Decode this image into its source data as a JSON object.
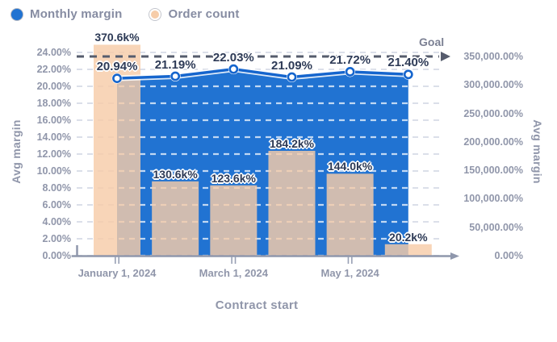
{
  "chart_data": {
    "type": "combo",
    "title": "",
    "series": [
      {
        "name": "Monthly margin",
        "type": "area-line",
        "axis": "left",
        "area_color": "#2173d2",
        "line_color": "#1565cd",
        "values": [
          20.94,
          21.19,
          22.03,
          21.09,
          21.72,
          21.4
        ],
        "labels": [
          "20.94%",
          "21.19%",
          "22.03%",
          "21.09%",
          "21.72%",
          "21.40%"
        ]
      },
      {
        "name": "Order count",
        "type": "bar",
        "axis": "right",
        "color": "#f6cca8",
        "values": [
          370600,
          130600,
          123600,
          184200,
          144000,
          20200
        ],
        "labels": [
          "370.6k%",
          "130.6k%",
          "123.6k%",
          "184.2k%",
          "144.0k%",
          "20.2k%"
        ]
      }
    ],
    "left_axis": {
      "title": "Avg margin",
      "min": 0,
      "max": 24,
      "tick_labels": [
        "24.00%",
        "22.00%",
        "20.00%",
        "18.00%",
        "16.00%",
        "14.00%",
        "12.00%",
        "10.00%",
        "8.00%",
        "6.00%",
        "4.00%",
        "2.00%",
        "0.00%"
      ]
    },
    "right_axis": {
      "title": "Avg margin",
      "min": 0,
      "max": 350000,
      "tick_labels": [
        "350,000.00%",
        "300,000.00%",
        "250,000.00%",
        "200,000.00%",
        "150,000.00%",
        "100,000.00%",
        "50,000.00%",
        "0.00%"
      ]
    },
    "x_axis": {
      "title": "Contract start",
      "tick_labels": [
        "January 1, 2024",
        "March 1, 2024",
        "May 1, 2024"
      ],
      "tick_point_indexes": [
        0,
        2,
        4
      ]
    },
    "goal": {
      "label": "Goal"
    },
    "layout": {
      "legend_position": "top-left",
      "grid": "dashed",
      "goal_line_style": "dark-dashed",
      "text_color": "#9096aa",
      "label_color": "#2d3a56"
    }
  }
}
